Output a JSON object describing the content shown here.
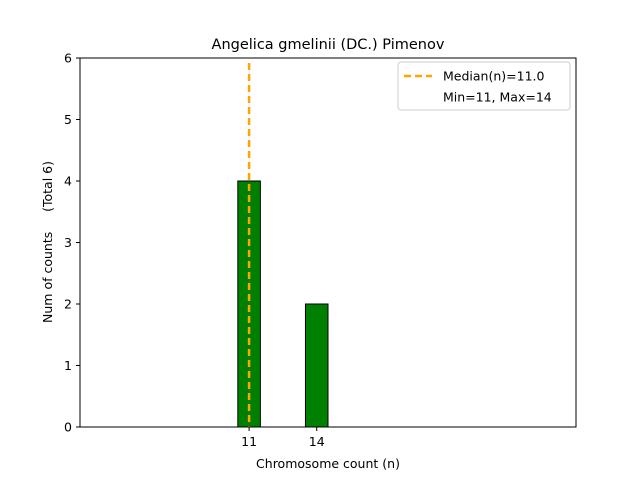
{
  "chart_data": {
    "type": "bar",
    "title": "Angelica gmelinii (DC.) Pimenov",
    "xlabel": "Chromosome count (n)",
    "ylabel": "Num of counts     (Total 6)",
    "xlim": [
      3.5,
      25.5
    ],
    "ylim": [
      0,
      6
    ],
    "x_ticks": [
      11,
      14
    ],
    "y_ticks": [
      0,
      1,
      2,
      3,
      4,
      5,
      6
    ],
    "bars": [
      {
        "x": 11,
        "value": 4
      },
      {
        "x": 14,
        "value": 2
      }
    ],
    "bar_width": 1,
    "bar_color": "#008000",
    "bar_edge_color": "#000000",
    "median": 11.0,
    "median_color": "#ffa500",
    "grid": false,
    "legend": {
      "placement": "top-right",
      "entries": [
        "Median(n)=11.0",
        "Min=11, Max=14"
      ]
    }
  }
}
